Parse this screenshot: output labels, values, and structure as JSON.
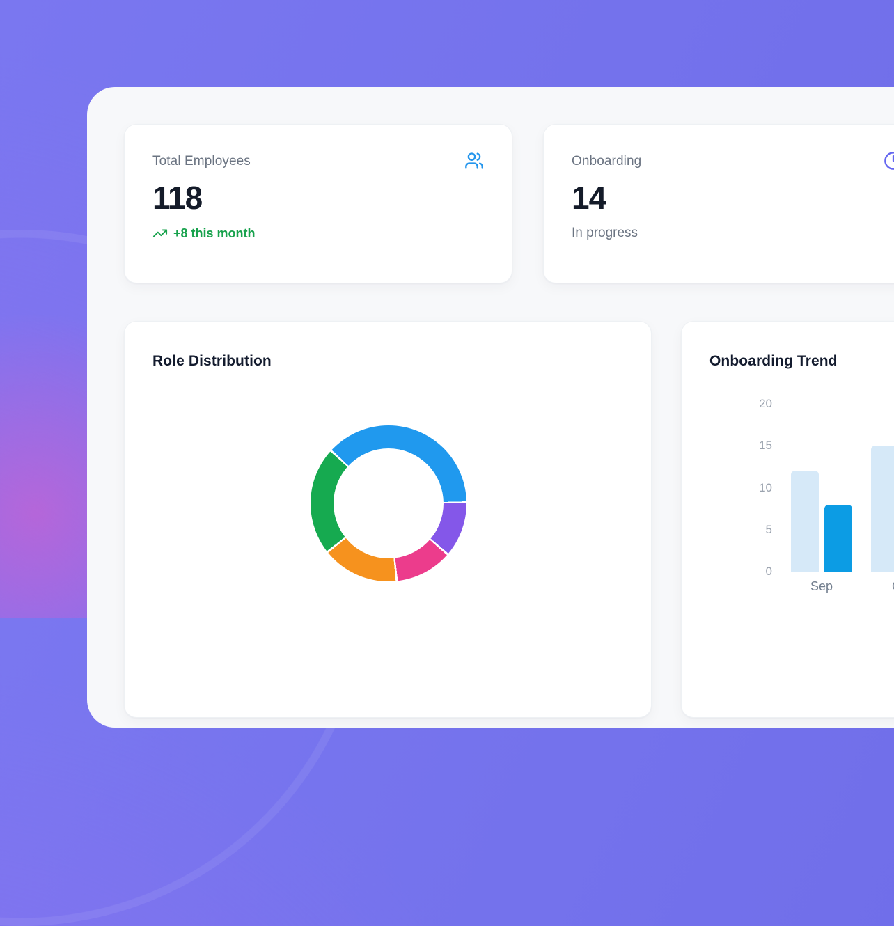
{
  "colors": {
    "background_purple": "#7472ec",
    "panel_background": "#f7f8fa",
    "card_background": "#ffffff",
    "value_text": "#141b29",
    "label_text": "#6b7482",
    "trend_green": "#18a24d",
    "users_icon_blue": "#2395ec",
    "clock_icon_indigo": "#6466f0"
  },
  "stat_cards": [
    {
      "label": "Total Employees",
      "value": "118",
      "trend": "+8 this month",
      "icon": "users-icon",
      "icon_color": "#2395ec",
      "trend_icon": "trending-up-icon"
    },
    {
      "label": "Onboarding",
      "value": "14",
      "sub": "In progress",
      "icon": "clock-icon",
      "icon_color": "#6466f0"
    }
  ],
  "chart_data": [
    {
      "id": "role-distribution",
      "type": "pie",
      "title": "Role Distribution",
      "donut": true,
      "start_angle_deg": 312.5,
      "segment_gap_deg": 1.6,
      "segments": [
        {
          "color": "#2099ee",
          "percent": 38
        },
        {
          "color": "#8457e9",
          "percent": 11.5
        },
        {
          "color": "#ec3c8c",
          "percent": 12
        },
        {
          "color": "#f6921e",
          "percent": 16
        },
        {
          "color": "#16aa50",
          "percent": 22.5
        }
      ],
      "labels_visible": false,
      "legend": "none"
    },
    {
      "id": "onboarding-trend",
      "type": "bar",
      "title": "Onboarding Trend",
      "categories": [
        "Sep",
        "Oct"
      ],
      "series": [
        {
          "name": "series-1",
          "color": "#d6e9f8",
          "values": [
            12,
            15
          ]
        },
        {
          "name": "series-2",
          "color": "#0c9ce4",
          "values": [
            8,
            null
          ]
        }
      ],
      "yticks": [
        0,
        5,
        10,
        15,
        20
      ],
      "ylim": [
        0,
        20
      ],
      "grid": false,
      "legend": "none"
    }
  ]
}
